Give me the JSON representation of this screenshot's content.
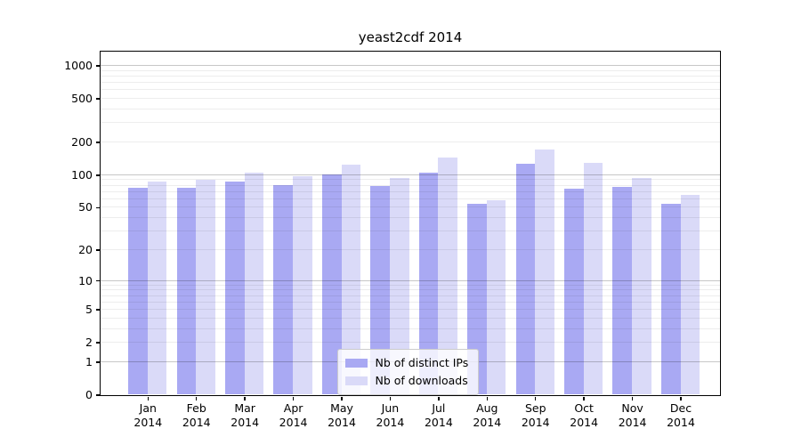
{
  "title": "yeast2cdf 2014",
  "chart_data": {
    "type": "bar",
    "title": "yeast2cdf 2014",
    "categories": [
      "Jan",
      "Feb",
      "Mar",
      "Apr",
      "May",
      "Jun",
      "Jul",
      "Aug",
      "Sep",
      "Oct",
      "Nov",
      "Dec"
    ],
    "category_year": "2014",
    "series": [
      {
        "name": "Nb of distinct IPs",
        "color": "#a9a9f3",
        "values": [
          76,
          76,
          87,
          81,
          100,
          79,
          105,
          54,
          127,
          75,
          78,
          54
        ]
      },
      {
        "name": "Nb of downloads",
        "color": "#dadaf8",
        "values": [
          87,
          90,
          105,
          97,
          124,
          93,
          145,
          58,
          170,
          129,
          94,
          65
        ]
      }
    ],
    "xlabel": "",
    "ylabel": "",
    "yscale": "log1p",
    "y_ticks": [
      0,
      1,
      2,
      5,
      10,
      20,
      50,
      100,
      200,
      500,
      1000
    ],
    "ylim": [
      0,
      1350
    ],
    "grid": true,
    "legend_position": "lower center"
  }
}
